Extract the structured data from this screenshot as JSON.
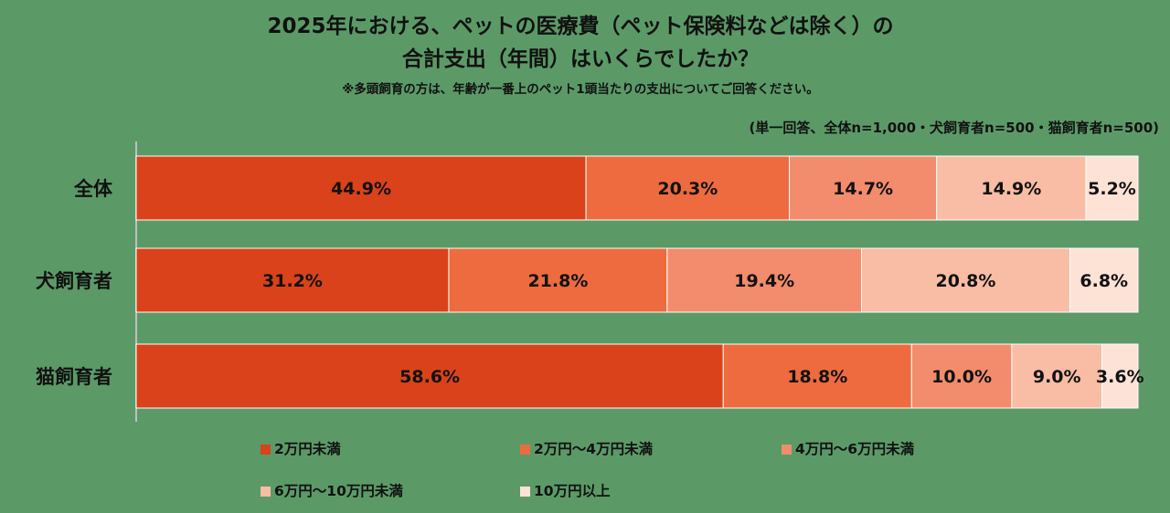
{
  "title_line1": "2025年における、ペットの医療費（ペット保険料などは除く）の",
  "title_line2": "合計支出（年間）はいくらでしたか？",
  "note": "※多頭飼育の方は、年齢が一番上のペット1頭当たりの支出についてご回答ください。",
  "sample": "(単一回答、全体n=1,000・犬飼育者n=500・猫飼育者n=500)",
  "chart_data": {
    "type": "bar",
    "orientation": "horizontal",
    "stacked": "100%",
    "categories": [
      "全体",
      "犬飼育者",
      "猫飼育者"
    ],
    "series": [
      {
        "name": "2万円未満",
        "values": [
          44.9,
          31.2,
          58.6
        ],
        "color": "#d9421a",
        "label_color": "#111111"
      },
      {
        "name": "2万円～4万円未満",
        "values": [
          20.3,
          21.8,
          18.8
        ],
        "color": "#ed6b3e",
        "label_color": "#111111"
      },
      {
        "name": "4万円～6万円未満",
        "values": [
          14.7,
          19.4,
          10.0
        ],
        "color": "#f28c6c",
        "label_color": "#111111"
      },
      {
        "name": "6万円～10万円未満",
        "values": [
          14.9,
          20.8,
          9.0
        ],
        "color": "#f8bda4",
        "label_color": "#111111"
      },
      {
        "name": "10万円以上",
        "values": [
          5.2,
          6.8,
          3.6
        ],
        "color": "#fde2d6",
        "label_color": "#111111"
      }
    ],
    "value_suffix": "%",
    "xlim": [
      0,
      100
    ],
    "legend_position": "bottom"
  }
}
